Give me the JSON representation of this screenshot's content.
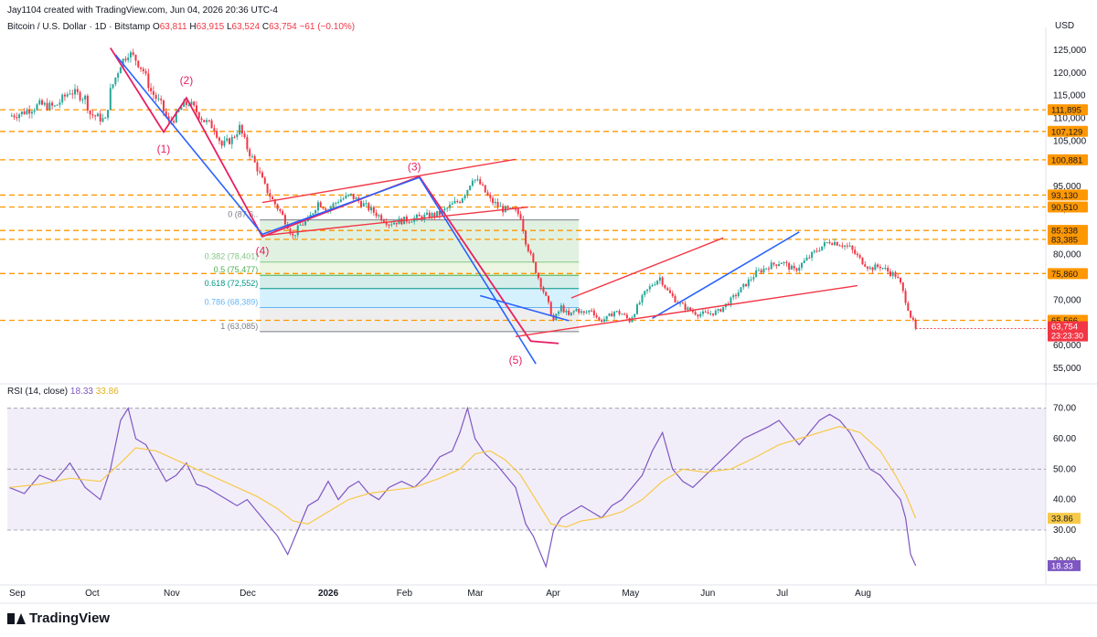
{
  "header": {
    "credit": "Jay1104 created with TradingView.com, Jun 04, 2026 20:36 UTC-4",
    "symbol": "Bitcoin / U.S. Dollar · 1D · Bitstamp",
    "o_label": "O",
    "o_val": "63,811",
    "h_label": "H",
    "h_val": "63,915",
    "l_label": "L",
    "l_val": "63,524",
    "c_label": "C",
    "c_val": "63,754",
    "change": "−61 (−0.10%)",
    "currency": "USD"
  },
  "rsi_legend": {
    "name": "RSI (14, close)",
    "rsi": "18.33",
    "ma": "33.86"
  },
  "brand": "TradingView",
  "colors": {
    "up": "#26a69a",
    "down": "#f23645",
    "level": "#ff9800",
    "blue": "#2962ff",
    "rsi": "#7e57c2",
    "rsi_ma": "#f7c948",
    "wave": "#e91e63"
  },
  "chart_data": [
    {
      "type": "candlestick",
      "title": "Bitcoin / U.S. Dollar · 1D · Bitstamp",
      "ylabel": "USD",
      "ylim": [
        52000,
        128000
      ],
      "x_ticks": [
        "Sep",
        "Oct",
        "Nov",
        "Dec",
        "2026",
        "Feb",
        "Mar",
        "Apr",
        "May",
        "Jun",
        "Jul",
        "Aug"
      ],
      "y_ticks": [
        "125,000",
        "120,000",
        "115,000",
        "110,000",
        "105,000",
        "95,000",
        "90,000",
        "85,000",
        "80,000",
        "70,000",
        "65,000",
        "60,000",
        "55,000"
      ],
      "close_path": [
        [
          0,
          110500
        ],
        [
          5,
          111200
        ],
        [
          12,
          113000
        ],
        [
          18,
          112500
        ],
        [
          24,
          116000
        ],
        [
          30,
          114500
        ],
        [
          32,
          111000
        ],
        [
          38,
          109500
        ],
        [
          40,
          116000
        ],
        [
          44,
          122000
        ],
        [
          47,
          124500
        ],
        [
          50,
          123000
        ],
        [
          53,
          120500
        ],
        [
          56,
          116000
        ],
        [
          60,
          113000
        ],
        [
          63,
          109000
        ],
        [
          66,
          110500
        ],
        [
          68,
          112500
        ],
        [
          71,
          113500
        ],
        [
          74,
          111500
        ],
        [
          77,
          109500
        ],
        [
          81,
          108000
        ],
        [
          84,
          104000
        ],
        [
          88,
          105500
        ],
        [
          91,
          108000
        ],
        [
          94,
          103500
        ],
        [
          98,
          99000
        ],
        [
          101,
          95000
        ],
        [
          104,
          92000
        ],
        [
          107,
          89500
        ],
        [
          110,
          86500
        ],
        [
          112,
          84000
        ],
        [
          115,
          86500
        ],
        [
          118,
          87500
        ],
        [
          122,
          91500
        ],
        [
          126,
          90000
        ],
        [
          130,
          92000
        ],
        [
          135,
          93000
        ],
        [
          140,
          91000
        ],
        [
          145,
          89000
        ],
        [
          150,
          87000
        ],
        [
          155,
          87500
        ],
        [
          160,
          88000
        ],
        [
          165,
          88500
        ],
        [
          170,
          89000
        ],
        [
          175,
          91000
        ],
        [
          178,
          92000
        ],
        [
          181,
          94500
        ],
        [
          183,
          97000
        ],
        [
          186,
          95500
        ],
        [
          190,
          92000
        ],
        [
          195,
          90000
        ],
        [
          200,
          89500
        ],
        [
          202,
          88500
        ],
        [
          204,
          83000
        ],
        [
          207,
          78000
        ],
        [
          210,
          73500
        ],
        [
          213,
          69000
        ],
        [
          215,
          65500
        ],
        [
          218,
          68500
        ],
        [
          221,
          66500
        ],
        [
          224,
          68000
        ],
        [
          227,
          67000
        ],
        [
          230,
          68000
        ],
        [
          233,
          65500
        ],
        [
          236,
          66000
        ],
        [
          239,
          67500
        ],
        [
          242,
          67000
        ],
        [
          245,
          65500
        ],
        [
          248,
          68500
        ],
        [
          251,
          71500
        ],
        [
          254,
          73500
        ],
        [
          257,
          75000
        ],
        [
          260,
          72000
        ],
        [
          264,
          69500
        ],
        [
          268,
          68000
        ],
        [
          272,
          67000
        ],
        [
          276,
          67000
        ],
        [
          280,
          67500
        ],
        [
          285,
          70000
        ],
        [
          290,
          73000
        ],
        [
          295,
          76000
        ],
        [
          300,
          77500
        ],
        [
          305,
          78500
        ],
        [
          310,
          76500
        ],
        [
          315,
          79000
        ],
        [
          320,
          81500
        ],
        [
          324,
          83000
        ],
        [
          328,
          82500
        ],
        [
          332,
          81500
        ],
        [
          336,
          79000
        ],
        [
          340,
          77000
        ],
        [
          344,
          77500
        ],
        [
          348,
          76000
        ],
        [
          350,
          75500
        ],
        [
          352,
          73500
        ],
        [
          354,
          70000
        ],
        [
          356,
          66500
        ],
        [
          358,
          63754
        ]
      ],
      "levels": [
        {
          "value": 111895,
          "label": "111,895"
        },
        {
          "value": 107129,
          "label": "107,129"
        },
        {
          "value": 100881,
          "label": "100,881"
        },
        {
          "value": 93130,
          "label": "93,130"
        },
        {
          "value": 90510,
          "label": "90,510"
        },
        {
          "value": 85338,
          "label": "85,338"
        },
        {
          "value": 83385,
          "label": "83,385"
        },
        {
          "value": 75860,
          "label": "75,860"
        },
        {
          "value": 65566,
          "label": "65,566"
        }
      ],
      "last_price": "63,754",
      "countdown": "23:23:30",
      "fib": [
        {
          "label": "0 (87,6..",
          "value": 87655
        },
        {
          "label": "0.382 (78,401)",
          "value": 78401
        },
        {
          "label": "0.5 (75,477)",
          "value": 75477
        },
        {
          "label": "0.618 (72,552)",
          "value": 72552
        },
        {
          "label": "0.786 (68,389)",
          "value": 68389
        },
        {
          "label": "1 (63,085)",
          "value": 63085
        }
      ],
      "wave_labels": [
        "(1)",
        "(2)",
        "(3)",
        "(4)",
        "(5)"
      ]
    },
    {
      "type": "line",
      "title": "RSI (14, close)",
      "ylim": [
        15,
        72
      ],
      "y_ticks": [
        "70.00",
        "60.00",
        "50.00",
        "40.00",
        "30.00",
        "20.00"
      ],
      "rsi_last": "18.33",
      "ma_last": "33.86",
      "rsi_path": [
        [
          0,
          44
        ],
        [
          6,
          42
        ],
        [
          12,
          48
        ],
        [
          18,
          46
        ],
        [
          24,
          52
        ],
        [
          30,
          44
        ],
        [
          36,
          40
        ],
        [
          40,
          50
        ],
        [
          44,
          66
        ],
        [
          47,
          70
        ],
        [
          50,
          60
        ],
        [
          54,
          58
        ],
        [
          58,
          52
        ],
        [
          62,
          46
        ],
        [
          66,
          48
        ],
        [
          70,
          52
        ],
        [
          74,
          45
        ],
        [
          78,
          44
        ],
        [
          82,
          42
        ],
        [
          86,
          40
        ],
        [
          90,
          38
        ],
        [
          94,
          40
        ],
        [
          98,
          36
        ],
        [
          102,
          32
        ],
        [
          106,
          28
        ],
        [
          110,
          22
        ],
        [
          114,
          30
        ],
        [
          118,
          38
        ],
        [
          122,
          40
        ],
        [
          126,
          46
        ],
        [
          130,
          40
        ],
        [
          134,
          44
        ],
        [
          138,
          46
        ],
        [
          142,
          42
        ],
        [
          146,
          40
        ],
        [
          150,
          44
        ],
        [
          155,
          46
        ],
        [
          160,
          44
        ],
        [
          165,
          48
        ],
        [
          170,
          54
        ],
        [
          175,
          56
        ],
        [
          178,
          62
        ],
        [
          181,
          70
        ],
        [
          184,
          60
        ],
        [
          188,
          55
        ],
        [
          192,
          52
        ],
        [
          196,
          48
        ],
        [
          200,
          44
        ],
        [
          204,
          32
        ],
        [
          207,
          28
        ],
        [
          210,
          22
        ],
        [
          212,
          18
        ],
        [
          215,
          30
        ],
        [
          218,
          34
        ],
        [
          222,
          36
        ],
        [
          226,
          38
        ],
        [
          230,
          36
        ],
        [
          234,
          34
        ],
        [
          238,
          38
        ],
        [
          242,
          40
        ],
        [
          246,
          44
        ],
        [
          250,
          48
        ],
        [
          254,
          56
        ],
        [
          258,
          62
        ],
        [
          262,
          50
        ],
        [
          266,
          46
        ],
        [
          270,
          44
        ],
        [
          275,
          48
        ],
        [
          280,
          52
        ],
        [
          285,
          56
        ],
        [
          290,
          60
        ],
        [
          295,
          62
        ],
        [
          300,
          64
        ],
        [
          304,
          66
        ],
        [
          308,
          62
        ],
        [
          312,
          58
        ],
        [
          316,
          62
        ],
        [
          320,
          66
        ],
        [
          324,
          68
        ],
        [
          328,
          66
        ],
        [
          332,
          62
        ],
        [
          336,
          56
        ],
        [
          340,
          50
        ],
        [
          344,
          48
        ],
        [
          348,
          44
        ],
        [
          352,
          40
        ],
        [
          354,
          34
        ],
        [
          356,
          22
        ],
        [
          358,
          18.33
        ]
      ],
      "ma_path": [
        [
          0,
          44
        ],
        [
          12,
          45
        ],
        [
          24,
          47
        ],
        [
          36,
          46
        ],
        [
          44,
          52
        ],
        [
          50,
          57
        ],
        [
          58,
          56
        ],
        [
          66,
          53
        ],
        [
          74,
          50
        ],
        [
          82,
          47
        ],
        [
          90,
          44
        ],
        [
          98,
          41
        ],
        [
          106,
          37
        ],
        [
          112,
          33
        ],
        [
          118,
          32
        ],
        [
          126,
          36
        ],
        [
          134,
          40
        ],
        [
          142,
          42
        ],
        [
          150,
          43
        ],
        [
          160,
          44
        ],
        [
          170,
          47
        ],
        [
          178,
          50
        ],
        [
          184,
          55
        ],
        [
          190,
          56
        ],
        [
          196,
          53
        ],
        [
          202,
          48
        ],
        [
          208,
          40
        ],
        [
          214,
          32
        ],
        [
          220,
          31
        ],
        [
          226,
          33
        ],
        [
          234,
          34
        ],
        [
          242,
          36
        ],
        [
          250,
          40
        ],
        [
          258,
          46
        ],
        [
          266,
          50
        ],
        [
          275,
          49
        ],
        [
          285,
          50
        ],
        [
          295,
          54
        ],
        [
          304,
          58
        ],
        [
          312,
          60
        ],
        [
          320,
          62
        ],
        [
          328,
          64
        ],
        [
          336,
          62
        ],
        [
          344,
          56
        ],
        [
          350,
          48
        ],
        [
          354,
          42
        ],
        [
          358,
          33.86
        ]
      ]
    }
  ]
}
